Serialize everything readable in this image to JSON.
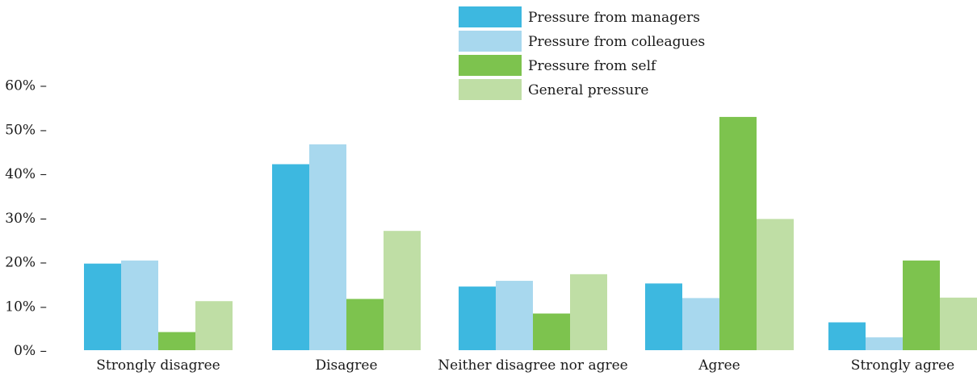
{
  "chart_data": {
    "type": "bar",
    "title": "",
    "xlabel": "",
    "ylabel": "",
    "categories": [
      "Strongly disagree",
      "Disagree",
      "Neither disagree nor agree",
      "Agree",
      "Strongly agree"
    ],
    "series": [
      {
        "name": "Pressure from managers",
        "color": "#3db8e0",
        "values": [
          19.6,
          42.1,
          14.4,
          15.1,
          6.3
        ]
      },
      {
        "name": "Pressure from colleagues",
        "color": "#a8d8ee",
        "values": [
          20.3,
          46.6,
          15.7,
          11.8,
          2.9
        ]
      },
      {
        "name": "Pressure from self",
        "color": "#7dc34e",
        "values": [
          4.1,
          11.6,
          8.3,
          52.8,
          20.3
        ]
      },
      {
        "name": "General pressure",
        "color": "#bfdea5",
        "values": [
          11.1,
          27.0,
          17.2,
          29.7,
          11.9
        ]
      }
    ],
    "ylim": [
      0,
      60
    ],
    "yticks": [
      0,
      10,
      20,
      30,
      40,
      50,
      60
    ],
    "ytick_labels": [
      "0% –",
      "10% –",
      "20% –",
      "30% –",
      "40% –",
      "50% –",
      "60% –"
    ],
    "grid": false,
    "legend_position": "top-center"
  }
}
